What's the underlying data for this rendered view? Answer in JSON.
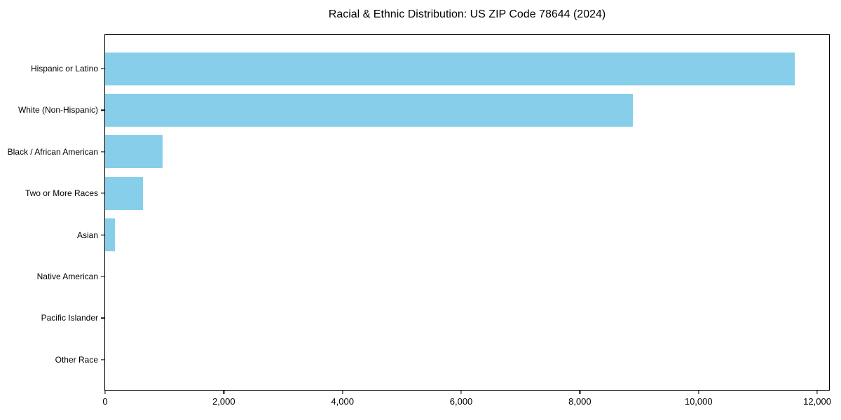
{
  "title": "Racial & Ethnic Distribution: US ZIP Code 78644 (2024)",
  "chart_data": {
    "type": "bar",
    "orientation": "horizontal",
    "title": "Racial & Ethnic Distribution: US ZIP Code 78644 (2024)",
    "categories": [
      "Hispanic or Latino",
      "White (Non-Hispanic)",
      "Black / African American",
      "Two or More Races",
      "Asian",
      "Native American",
      "Pacific Islander",
      "Other Race"
    ],
    "values": [
      11620,
      8890,
      965,
      635,
      165,
      0,
      0,
      0
    ],
    "xlabel": "",
    "ylabel": "",
    "xlim": [
      0,
      12200
    ],
    "x_ticks": [
      0,
      2000,
      4000,
      6000,
      8000,
      10000,
      12000
    ],
    "x_tick_labels": [
      "0",
      "2,000",
      "4,000",
      "6,000",
      "8,000",
      "10,000",
      "12,000"
    ],
    "bar_color": "#87CEEB",
    "grid": false,
    "legend": null
  }
}
